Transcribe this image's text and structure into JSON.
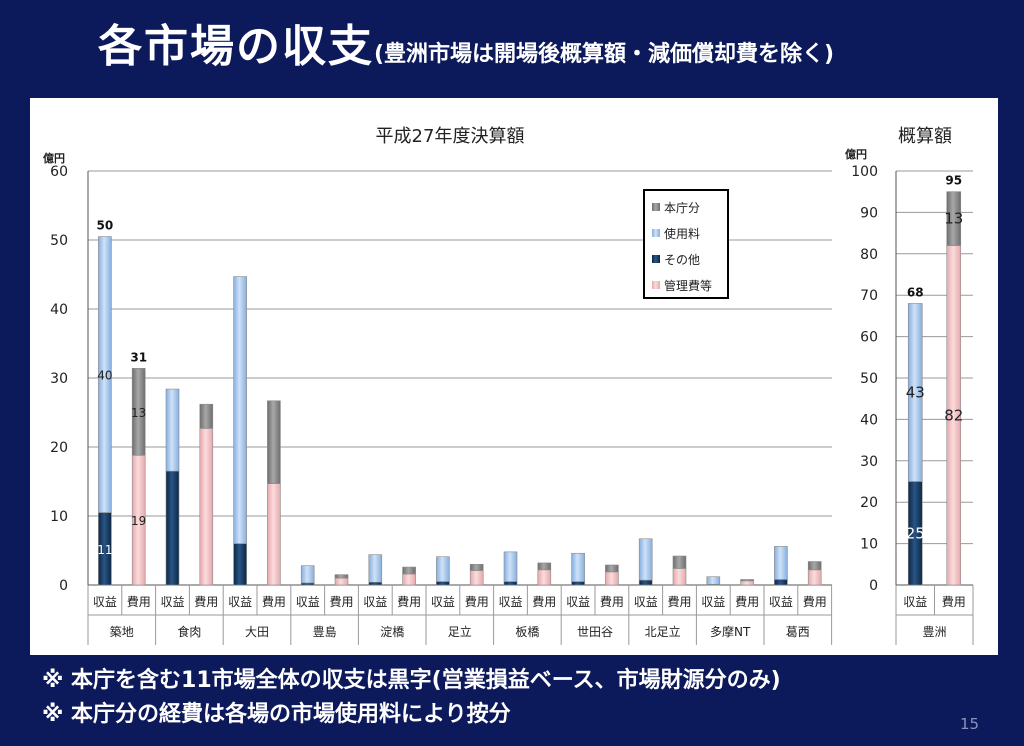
{
  "page": {
    "title": "各市場の収支",
    "subtitle": "(豊洲市場は開場後概算額・減価償却費を除く)",
    "notes": [
      "※ 本庁を含む11市場全体の収支は黒字(営業損益ベース、市場財源分のみ)",
      "※ 本庁分の経費は各場の市場使用料により按分"
    ],
    "page_number": "15"
  },
  "colors": {
    "本庁分": "#8c8c8c",
    "使用料": "#a7c7ec",
    "その他": "#14375f",
    "管理費等": "#f1c4c6"
  },
  "chart_data": [
    {
      "type": "bar",
      "stacked": true,
      "title": "平成27年度決算額",
      "ylabel": "億円",
      "ylim": [
        0,
        60
      ],
      "yticks": [
        0,
        10,
        20,
        30,
        40,
        50,
        60
      ],
      "grid": true,
      "legend": {
        "position": "top-right",
        "entries": [
          "本庁分",
          "使用料",
          "その他",
          "管理費等"
        ]
      },
      "groups": [
        "築地",
        "食肉",
        "大田",
        "豊島",
        "淀橋",
        "足立",
        "板橋",
        "世田谷",
        "北足立",
        "多摩NT",
        "葛西"
      ],
      "bar_labels": [
        "収益",
        "費用"
      ],
      "bars": [
        {
          "group": "築地",
          "label": "収益",
          "segments": {
            "その他": 10.5,
            "使用料": 40
          },
          "total": 50,
          "segment_labels": {
            "その他": "11",
            "使用料": "40"
          }
        },
        {
          "group": "築地",
          "label": "費用",
          "segments": {
            "管理費等": 18.8,
            "本庁分": 12.6
          },
          "total": 31,
          "segment_labels": {
            "管理費等": "19",
            "本庁分": "13"
          }
        },
        {
          "group": "食肉",
          "label": "収益",
          "segments": {
            "その他": 16.5,
            "使用料": 11.9
          }
        },
        {
          "group": "食肉",
          "label": "費用",
          "segments": {
            "管理費等": 22.7,
            "本庁分": 3.5
          }
        },
        {
          "group": "大田",
          "label": "収益",
          "segments": {
            "その他": 6.0,
            "使用料": 38.7
          }
        },
        {
          "group": "大田",
          "label": "費用",
          "segments": {
            "管理費等": 14.7,
            "本庁分": 12.0
          }
        },
        {
          "group": "豊島",
          "label": "収益",
          "segments": {
            "その他": 0.3,
            "使用料": 2.5
          }
        },
        {
          "group": "豊島",
          "label": "費用",
          "segments": {
            "管理費等": 1.0,
            "本庁分": 0.5
          }
        },
        {
          "group": "淀橋",
          "label": "収益",
          "segments": {
            "その他": 0.4,
            "使用料": 4.0
          }
        },
        {
          "group": "淀橋",
          "label": "費用",
          "segments": {
            "管理費等": 1.6,
            "本庁分": 1.0
          }
        },
        {
          "group": "足立",
          "label": "収益",
          "segments": {
            "その他": 0.5,
            "使用料": 3.6
          }
        },
        {
          "group": "足立",
          "label": "費用",
          "segments": {
            "管理費等": 2.1,
            "本庁分": 0.9
          }
        },
        {
          "group": "板橋",
          "label": "収益",
          "segments": {
            "その他": 0.5,
            "使用料": 4.3
          }
        },
        {
          "group": "板橋",
          "label": "費用",
          "segments": {
            "管理費等": 2.2,
            "本庁分": 1.0
          }
        },
        {
          "group": "世田谷",
          "label": "収益",
          "segments": {
            "その他": 0.5,
            "使用料": 4.1
          }
        },
        {
          "group": "世田谷",
          "label": "費用",
          "segments": {
            "管理費等": 1.9,
            "本庁分": 1.0
          }
        },
        {
          "group": "北足立",
          "label": "収益",
          "segments": {
            "その他": 0.7,
            "使用料": 6.0
          }
        },
        {
          "group": "北足立",
          "label": "費用",
          "segments": {
            "管理費等": 2.4,
            "本庁分": 1.8
          }
        },
        {
          "group": "多摩NT",
          "label": "収益",
          "segments": {
            "その他": 0.1,
            "使用料": 1.1
          }
        },
        {
          "group": "多摩NT",
          "label": "費用",
          "segments": {
            "管理費等": 0.6,
            "本庁分": 0.2
          }
        },
        {
          "group": "葛西",
          "label": "収益",
          "segments": {
            "その他": 0.8,
            "使用料": 4.8
          }
        },
        {
          "group": "葛西",
          "label": "費用",
          "segments": {
            "管理費等": 2.2,
            "本庁分": 1.2
          }
        }
      ]
    },
    {
      "type": "bar",
      "stacked": true,
      "title": "概算額",
      "ylabel": "億円",
      "ylim": [
        0,
        100
      ],
      "yticks": [
        0,
        10,
        20,
        30,
        40,
        50,
        60,
        70,
        80,
        90,
        100
      ],
      "grid": true,
      "groups": [
        "豊洲"
      ],
      "bar_labels": [
        "収益",
        "費用"
      ],
      "bars": [
        {
          "group": "豊洲",
          "label": "収益",
          "segments": {
            "その他": 25,
            "使用料": 43
          },
          "total": 68,
          "segment_labels": {
            "その他": "25",
            "使用料": "43"
          }
        },
        {
          "group": "豊洲",
          "label": "費用",
          "segments": {
            "管理費等": 82,
            "本庁分": 13
          },
          "total": 95,
          "segment_labels": {
            "管理費等": "82",
            "本庁分": "13"
          }
        }
      ]
    }
  ]
}
